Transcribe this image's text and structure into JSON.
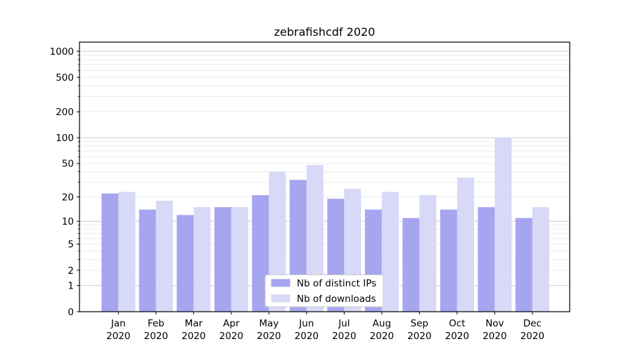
{
  "title": "zebrafishcdf 2020",
  "chart_data": {
    "type": "bar",
    "title": "zebrafishcdf 2020",
    "year": "2020",
    "categories": [
      "Jan",
      "Feb",
      "Mar",
      "Apr",
      "May",
      "Jun",
      "Jul",
      "Aug",
      "Sep",
      "Oct",
      "Nov",
      "Dec"
    ],
    "series": [
      {
        "name": "Nb of distinct IPs",
        "color": "#a5a5f0",
        "values": [
          22,
          14,
          12,
          15,
          21,
          32,
          19,
          14,
          11,
          14,
          15,
          11
        ]
      },
      {
        "name": "Nb of downloads",
        "color": "#d8d8f7",
        "values": [
          23,
          18,
          15,
          15,
          40,
          48,
          25,
          23,
          21,
          34,
          100,
          15
        ]
      }
    ],
    "yscale": "log1p",
    "ytick_values": [
      0,
      1,
      2,
      5,
      10,
      20,
      50,
      100,
      200,
      500,
      1000
    ],
    "ytick_labels": [
      "0",
      "1",
      "2",
      "5",
      "10",
      "20",
      "50",
      "100",
      "200",
      "500",
      "1000"
    ],
    "ylim": [
      0,
      1275
    ],
    "grid": "both",
    "legend_position": "lower-center",
    "colors": {
      "major_grid": "#cbcbcb",
      "minor_grid": "#ececec",
      "spine": "#000000",
      "legend_border": "#cccccc",
      "text": "#000000"
    }
  }
}
